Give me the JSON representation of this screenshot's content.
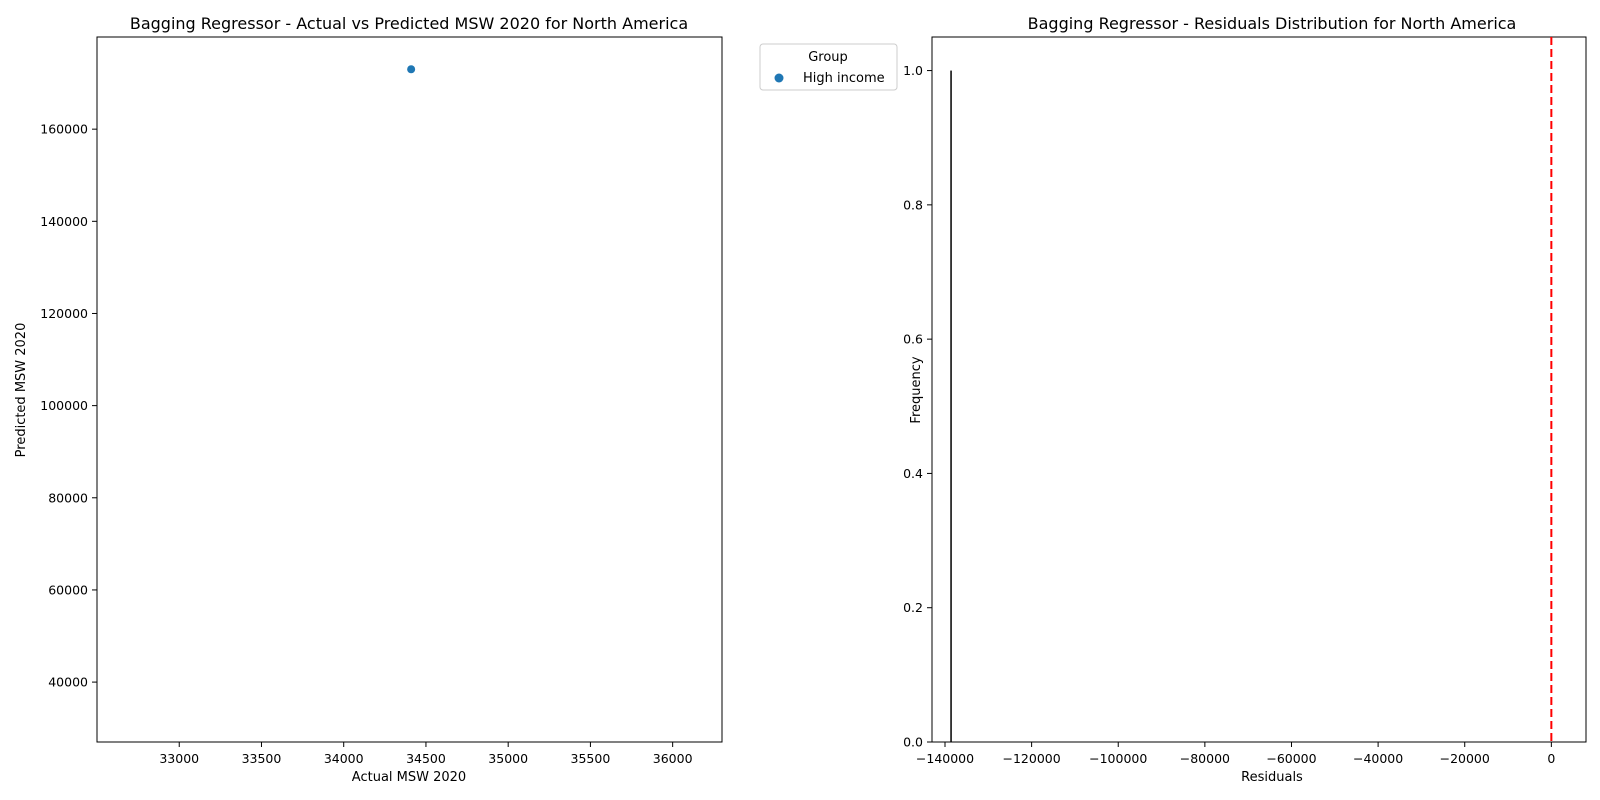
{
  "chart_data": [
    {
      "type": "scatter",
      "title": "Bagging Regressor - Actual vs Predicted MSW 2020 for North America",
      "xlabel": "Actual MSW 2020",
      "ylabel": "Predicted MSW 2020",
      "xlim": [
        32500,
        36300
      ],
      "ylim": [
        27000,
        180000
      ],
      "xticks": [
        33000,
        33500,
        34000,
        34500,
        35000,
        35500,
        36000
      ],
      "yticks": [
        40000,
        60000,
        80000,
        100000,
        120000,
        140000,
        160000
      ],
      "grid": false,
      "legend": {
        "title": "Group",
        "placement": "outside-top-right",
        "entries": [
          "High income"
        ]
      },
      "series": [
        {
          "name": "High income",
          "color": "#1f77b4",
          "points": [
            {
              "x": 34410,
              "y": 173000
            }
          ]
        }
      ]
    },
    {
      "type": "bar",
      "title": "Bagging Regressor - Residuals Distribution for North America",
      "xlabel": "Residuals",
      "ylabel": "Frequency",
      "xlim": [
        -143000,
        8000
      ],
      "ylim": [
        0,
        1.05
      ],
      "xticks": [
        -140000,
        -120000,
        -100000,
        -80000,
        -60000,
        -40000,
        -20000,
        0
      ],
      "yticks": [
        0.0,
        0.2,
        0.4,
        0.6,
        0.8,
        1.0
      ],
      "grid": false,
      "bins": [
        {
          "x": -138600,
          "frequency": 1.0
        }
      ],
      "bar_color": "#000000",
      "reference_line": {
        "x": 0,
        "color": "#ff0000",
        "style": "dashed"
      }
    }
  ]
}
